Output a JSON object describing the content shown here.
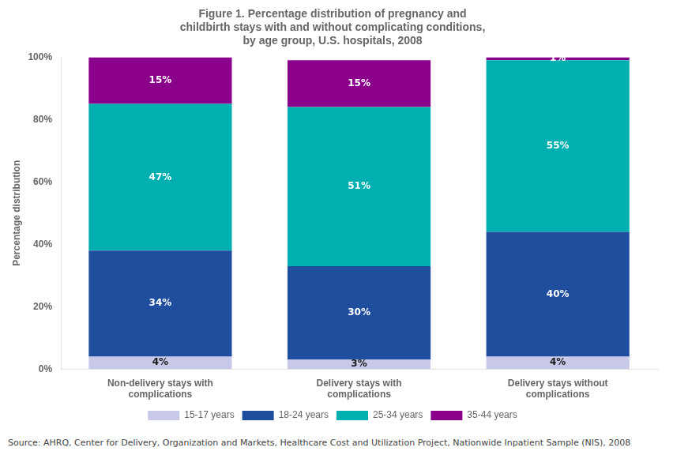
{
  "chart_data": {
    "type": "bar",
    "title": "Figure 1. Percentage distribution of pregnancy and\nchildbirth stays with and without complicating conditions,\nby age group, U.S. hospitals, 2008",
    "ylabel": "Percentage distribution",
    "source": "Source: AHRQ, Center for Delivery, Organization and Markets, Healthcare Cost and Utilization Project, Nationwide Inpatient Sample (NIS), 2008",
    "categories": [
      "Non-delivery stays with\ncomplications",
      "Delivery stays with\ncomplications",
      "Delivery stays without\ncomplications"
    ],
    "series": [
      {
        "name": "15-17 years",
        "color": "#c8c8e8",
        "values": [
          4,
          3,
          4
        ],
        "value_labels": [
          "4%",
          "3%",
          "4%"
        ]
      },
      {
        "name": "18-24 years",
        "color": "#1f4e9e",
        "values": [
          34,
          30,
          40
        ],
        "value_labels": [
          "34%",
          "30%",
          "40%"
        ]
      },
      {
        "name": "25-34 years",
        "color": "#00b0b0",
        "values": [
          47,
          51,
          55
        ],
        "value_labels": [
          "47%",
          "51%",
          "55%"
        ]
      },
      {
        "name": "35-44 years",
        "color": "#8b008b",
        "values": [
          15,
          15,
          1
        ],
        "value_labels": [
          "15%",
          "15%",
          "1%"
        ]
      }
    ],
    "stacked": true,
    "data_labels": true,
    "ylim": [
      0,
      100
    ],
    "yticks": [
      {
        "value": 0,
        "label": "0%"
      },
      {
        "value": 20,
        "label": "20%"
      },
      {
        "value": 40,
        "label": "40%"
      },
      {
        "value": 60,
        "label": "60%"
      },
      {
        "value": 80,
        "label": "80%"
      },
      {
        "value": 100,
        "label": "100%"
      }
    ],
    "grid": false,
    "legend": "bottom"
  }
}
